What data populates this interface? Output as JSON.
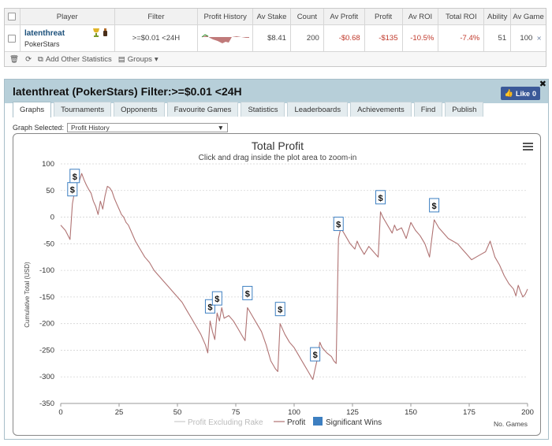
{
  "table": {
    "headers": [
      "Player",
      "Filter",
      "Profit History",
      "Av Stake",
      "Count",
      "Av Profit",
      "Profit",
      "Av ROI",
      "Total ROI",
      "Ability",
      "Av Game"
    ],
    "row": {
      "player_name": "latenthreat",
      "player_site": "PokerStars",
      "filter": ">=$0.01 <24H",
      "av_stake": "$8.41",
      "count": "200",
      "av_profit": "-$0.68",
      "profit": "-$135",
      "av_roi": "-10.5%",
      "total_roi": "-7.4%",
      "ability": "51",
      "av_game": "100"
    }
  },
  "toolbar": {
    "add_stats_label": "Add Other Statistics",
    "groups_label": "Groups"
  },
  "panel": {
    "title": "latenthreat (PokerStars) Filter:>=$0.01 <24H",
    "like_label": "Like",
    "like_count": "0",
    "tabs": [
      "Graphs",
      "Tournaments",
      "Opponents",
      "Favourite Games",
      "Statistics",
      "Leaderboards",
      "Achievements",
      "Find",
      "Publish"
    ],
    "active_tab": "Graphs",
    "graph_selected_label": "Graph Selected:",
    "graph_selected_value": "Profit History"
  },
  "colors": {
    "profit_line": "#b07373",
    "excl_rake_line": "#cccccc",
    "win_marker": "#3d7fc1",
    "panel_header": "#b7cfd9"
  },
  "chart_data": {
    "type": "line",
    "title": "Total Profit",
    "subtitle": "Click and drag inside the plot area to zoom-in",
    "xlabel": "No. Games",
    "ylabel": "Cumulative Total (USD)",
    "xlim": [
      0,
      200
    ],
    "ylim": [
      -350,
      100
    ],
    "x_ticks": [
      0,
      25,
      50,
      75,
      100,
      125,
      150,
      175,
      200
    ],
    "y_ticks": [
      100,
      50,
      0,
      -50,
      -100,
      -150,
      -200,
      -250,
      -300,
      -350
    ],
    "grid": true,
    "legend_position": "bottom",
    "series": [
      {
        "name": "Profit Excluding Rake",
        "hidden": true,
        "values": []
      },
      {
        "name": "Profit",
        "points": [
          [
            0,
            -15
          ],
          [
            2,
            -25
          ],
          [
            4,
            -42
          ],
          [
            5,
            25
          ],
          [
            6,
            50
          ],
          [
            7,
            70
          ],
          [
            8,
            68
          ],
          [
            9,
            82
          ],
          [
            10,
            70
          ],
          [
            11,
            60
          ],
          [
            12,
            52
          ],
          [
            13,
            45
          ],
          [
            14,
            30
          ],
          [
            15,
            20
          ],
          [
            16,
            5
          ],
          [
            17,
            30
          ],
          [
            18,
            15
          ],
          [
            19,
            40
          ],
          [
            20,
            58
          ],
          [
            21,
            55
          ],
          [
            22,
            48
          ],
          [
            23,
            35
          ],
          [
            24,
            25
          ],
          [
            25,
            15
          ],
          [
            26,
            5
          ],
          [
            27,
            0
          ],
          [
            28,
            -10
          ],
          [
            29,
            -15
          ],
          [
            30,
            -25
          ],
          [
            32,
            -45
          ],
          [
            34,
            -60
          ],
          [
            36,
            -75
          ],
          [
            38,
            -85
          ],
          [
            40,
            -100
          ],
          [
            42,
            -110
          ],
          [
            44,
            -120
          ],
          [
            46,
            -130
          ],
          [
            48,
            -140
          ],
          [
            50,
            -150
          ],
          [
            52,
            -160
          ],
          [
            54,
            -175
          ],
          [
            56,
            -190
          ],
          [
            58,
            -205
          ],
          [
            60,
            -220
          ],
          [
            62,
            -240
          ],
          [
            63,
            -255
          ],
          [
            64,
            -195
          ],
          [
            65,
            -215
          ],
          [
            66,
            -230
          ],
          [
            67,
            -180
          ],
          [
            68,
            -195
          ],
          [
            69,
            -170
          ],
          [
            70,
            -190
          ],
          [
            72,
            -185
          ],
          [
            74,
            -195
          ],
          [
            76,
            -210
          ],
          [
            78,
            -225
          ],
          [
            79,
            -232
          ],
          [
            80,
            -170
          ],
          [
            82,
            -185
          ],
          [
            84,
            -200
          ],
          [
            86,
            -215
          ],
          [
            88,
            -240
          ],
          [
            90,
            -270
          ],
          [
            92,
            -285
          ],
          [
            93,
            -290
          ],
          [
            94,
            -200
          ],
          [
            96,
            -220
          ],
          [
            98,
            -235
          ],
          [
            100,
            -245
          ],
          [
            102,
            -260
          ],
          [
            104,
            -275
          ],
          [
            106,
            -290
          ],
          [
            108,
            -305
          ],
          [
            109,
            -285
          ],
          [
            110,
            -265
          ],
          [
            111,
            -235
          ],
          [
            112,
            -245
          ],
          [
            114,
            -255
          ],
          [
            116,
            -262
          ],
          [
            117,
            -270
          ],
          [
            118,
            -275
          ],
          [
            119,
            -40
          ],
          [
            120,
            -20
          ],
          [
            122,
            -35
          ],
          [
            124,
            -50
          ],
          [
            126,
            -60
          ],
          [
            127,
            -45
          ],
          [
            128,
            -55
          ],
          [
            130,
            -70
          ],
          [
            132,
            -55
          ],
          [
            134,
            -65
          ],
          [
            136,
            -75
          ],
          [
            137,
            10
          ],
          [
            138,
            0
          ],
          [
            140,
            -15
          ],
          [
            142,
            -30
          ],
          [
            143,
            -15
          ],
          [
            144,
            -25
          ],
          [
            146,
            -20
          ],
          [
            148,
            -40
          ],
          [
            150,
            -10
          ],
          [
            152,
            -25
          ],
          [
            154,
            -35
          ],
          [
            156,
            -50
          ],
          [
            158,
            -75
          ],
          [
            159,
            -40
          ],
          [
            160,
            -5
          ],
          [
            162,
            -20
          ],
          [
            164,
            -30
          ],
          [
            166,
            -40
          ],
          [
            168,
            -45
          ],
          [
            170,
            -50
          ],
          [
            172,
            -60
          ],
          [
            174,
            -70
          ],
          [
            176,
            -80
          ],
          [
            178,
            -75
          ],
          [
            180,
            -70
          ],
          [
            182,
            -65
          ],
          [
            184,
            -45
          ],
          [
            186,
            -75
          ],
          [
            188,
            -90
          ],
          [
            190,
            -110
          ],
          [
            192,
            -125
          ],
          [
            194,
            -135
          ],
          [
            195,
            -148
          ],
          [
            196,
            -128
          ],
          [
            197,
            -140
          ],
          [
            198,
            -150
          ],
          [
            199,
            -145
          ],
          [
            200,
            -135
          ]
        ]
      }
    ],
    "significant_wins": {
      "name": "Significant Wins",
      "points": [
        [
          5,
          25
        ],
        [
          6,
          50
        ],
        [
          64,
          -195
        ],
        [
          67,
          -180
        ],
        [
          80,
          -170
        ],
        [
          94,
          -200
        ],
        [
          109,
          -285
        ],
        [
          119,
          -40
        ],
        [
          137,
          10
        ],
        [
          160,
          -5
        ]
      ],
      "label": "$"
    }
  }
}
